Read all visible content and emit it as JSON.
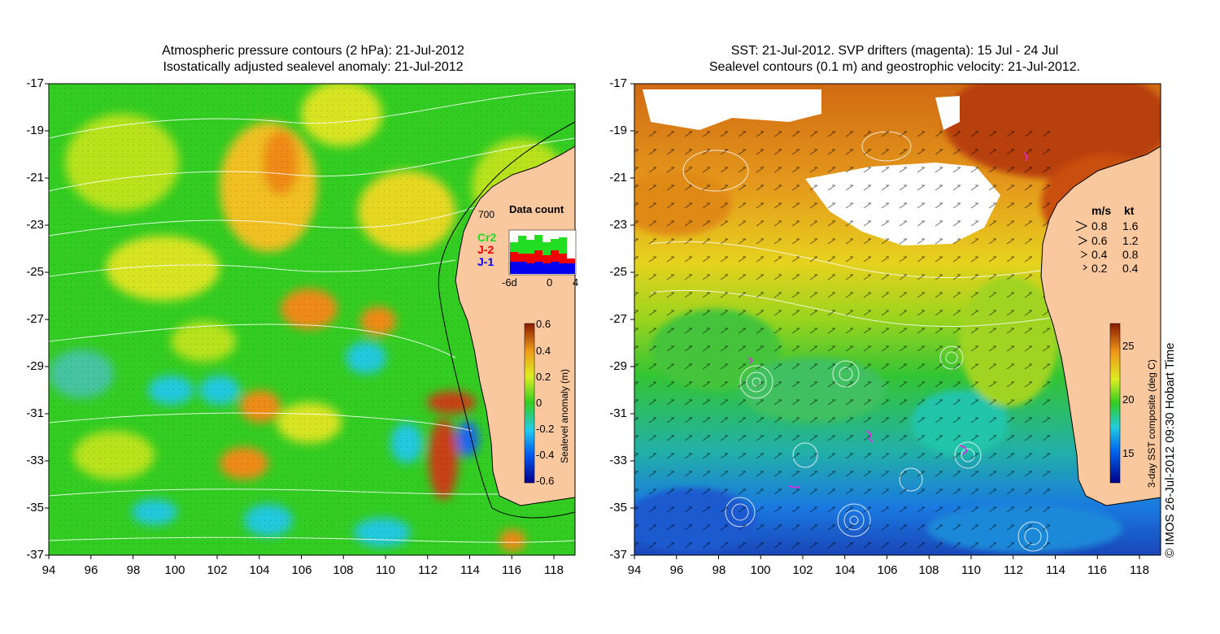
{
  "left_panel": {
    "title_line1": "Atmospheric pressure contours (2 hPa): 21-Jul-2012",
    "title_line2": "Isostatically adjusted sealevel anomaly: 21-Jul-2012",
    "y_ticks": [
      "-17",
      "-19",
      "-21",
      "-23",
      "-25",
      "-27",
      "-29",
      "-31",
      "-33",
      "-35",
      "-37"
    ],
    "x_ticks": [
      "94",
      "96",
      "98",
      "100",
      "102",
      "104",
      "106",
      "108",
      "110",
      "112",
      "114",
      "116",
      "118"
    ],
    "colorbar": {
      "label": "Sealevel anomaly (m)",
      "ticks": [
        "0.6",
        "0.4",
        "0.2",
        "0",
        "-0.2",
        "-0.4",
        "-0.6"
      ],
      "range": [
        -0.6,
        0.6
      ]
    },
    "depth_label": "700",
    "data_count": {
      "title": "Data count",
      "legend": [
        {
          "name": "Cr2",
          "color": "#22dd22"
        },
        {
          "name": "J-2",
          "color": "#ee0000"
        },
        {
          "name": "J-1",
          "color": "#0000ee"
        }
      ],
      "x_ticks": [
        "-6d",
        "0",
        "4"
      ]
    }
  },
  "right_panel": {
    "title_line1": "SST: 21-Jul-2012. SVP drifters (magenta): 15 Jul - 24 Jul",
    "title_line2": "Sealevel contours (0.1 m) and geostrophic velocity: 21-Jul-2012.",
    "y_ticks": [
      "-17",
      "-19",
      "-21",
      "-23",
      "-25",
      "-27",
      "-29",
      "-31",
      "-33",
      "-35",
      "-37"
    ],
    "x_ticks": [
      "94",
      "96",
      "98",
      "100",
      "102",
      "104",
      "106",
      "108",
      "110",
      "112",
      "114",
      "116",
      "118"
    ],
    "colorbar": {
      "label": "3-day SST composite (deg C)",
      "ticks": [
        "25",
        "20",
        "15"
      ],
      "range": [
        12.5,
        27
      ]
    },
    "velocity_legend": {
      "header_ms": "m/s",
      "header_kt": "kt",
      "rows": [
        {
          "ms": "0.8",
          "kt": "1.6"
        },
        {
          "ms": "0.6",
          "kt": "1.2"
        },
        {
          "ms": "0.4",
          "kt": "0.8"
        },
        {
          "ms": "0.2",
          "kt": "0.4"
        }
      ]
    }
  },
  "credit": "© IMOS 26-Jul-2012 09:30 Hobart Time",
  "colors": {
    "land": "#f9c89f",
    "ocean_anomaly_base": "#33cc22",
    "sst_warm": "#d86a10",
    "sst_cool": "#1a66dd",
    "drifter": "#ee22ee"
  }
}
